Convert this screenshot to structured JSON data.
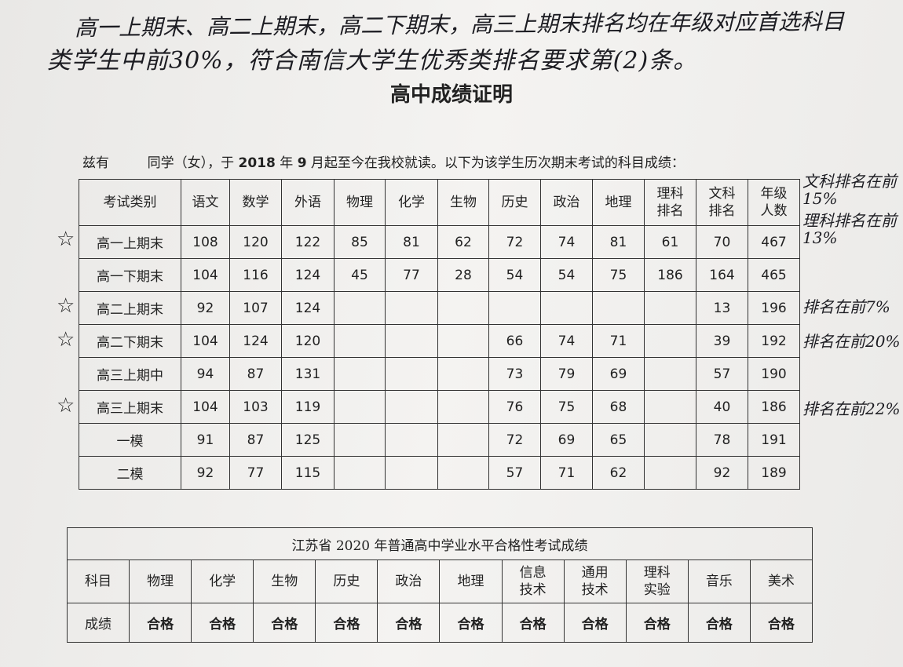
{
  "handwriting": {
    "top_line1": "高一上期末、高二上期末，高二下期末，高三上期末排名均在年级对应首选科目",
    "top_line2": "类学生中前30%，符合南信大学生优秀类排名要求第(2)条。",
    "side_notes": [
      "文科排名在前15%",
      "理科排名在前13%",
      "排名在前7%",
      "排名在前20%",
      "排名在前22%"
    ],
    "star_marks": [
      "高一上期末",
      "高二上期末",
      "高二下期末",
      "高三上期末"
    ]
  },
  "title": "高中成绩证明",
  "intro": {
    "prefix": "兹有",
    "middle": "同学（女），于 ",
    "year": "2018",
    "year_unit": " 年 ",
    "month": "9",
    "suffix": " 月起至今在我校就读。以下为该学生历次期末考试的科目成绩："
  },
  "scores_table": {
    "headers": [
      "考试类别",
      "语文",
      "数学",
      "外语",
      "物理",
      "化学",
      "生物",
      "历史",
      "政治",
      "地理",
      "理科\n排名",
      "文科\n排名",
      "年级\n人数"
    ],
    "rows": [
      [
        "高一上期末",
        "108",
        "120",
        "122",
        "85",
        "81",
        "62",
        "72",
        "74",
        "81",
        "61",
        "70",
        "467"
      ],
      [
        "高一下期末",
        "104",
        "116",
        "124",
        "45",
        "77",
        "28",
        "54",
        "54",
        "75",
        "186",
        "164",
        "465"
      ],
      [
        "高二上期末",
        "92",
        "107",
        "124",
        "",
        "",
        "",
        "",
        "",
        "",
        "",
        "13",
        "196"
      ],
      [
        "高二下期末",
        "104",
        "124",
        "120",
        "",
        "",
        "",
        "66",
        "74",
        "71",
        "",
        "39",
        "192"
      ],
      [
        "高三上期中",
        "94",
        "87",
        "131",
        "",
        "",
        "",
        "73",
        "79",
        "69",
        "",
        "57",
        "190"
      ],
      [
        "高三上期末",
        "104",
        "103",
        "119",
        "",
        "",
        "",
        "76",
        "75",
        "68",
        "",
        "40",
        "186"
      ],
      [
        "一模",
        "91",
        "87",
        "125",
        "",
        "",
        "",
        "72",
        "69",
        "65",
        "",
        "78",
        "191"
      ],
      [
        "二模",
        "92",
        "77",
        "115",
        "",
        "",
        "",
        "57",
        "71",
        "62",
        "",
        "92",
        "189"
      ]
    ]
  },
  "pass_table": {
    "title": "江苏省 2020 年普通高中学业水平合格性考试成绩",
    "subjects": [
      "科目",
      "物理",
      "化学",
      "生物",
      "历史",
      "政治",
      "地理",
      "信息\n技术",
      "通用\n技术",
      "理科\n实验",
      "音乐",
      "美术"
    ],
    "results": [
      "成绩",
      "合格",
      "合格",
      "合格",
      "合格",
      "合格",
      "合格",
      "合格",
      "合格",
      "合格",
      "合格",
      "合格"
    ]
  }
}
